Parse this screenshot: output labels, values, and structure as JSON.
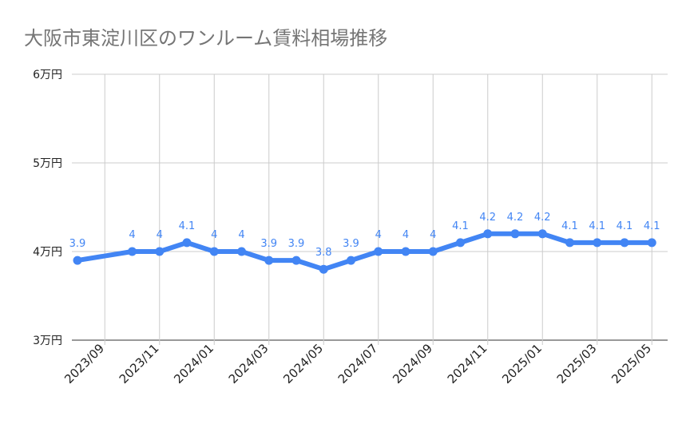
{
  "chart_data": {
    "type": "line",
    "title": "大阪市東淀川区のワンルーム賃料相場推移",
    "xlabel": "",
    "ylabel": "",
    "y_ticks": [
      {
        "value": 3,
        "label": "3万円"
      },
      {
        "value": 4,
        "label": "4万円"
      },
      {
        "value": 5,
        "label": "5万円"
      },
      {
        "value": 6,
        "label": "6万円"
      }
    ],
    "ylim": [
      3,
      6
    ],
    "grid": true,
    "legend": "none",
    "line_color": "#4285f4",
    "x_tick_labels": [
      "2023/09",
      "2023/11",
      "2024/01",
      "2024/03",
      "2024/05",
      "2024/07",
      "2024/09",
      "2024/11",
      "2025/01",
      "2025/03",
      "2025/05"
    ],
    "points": [
      {
        "x": "2023/08",
        "value": 3.9,
        "label": "3.9"
      },
      {
        "x": "2023/10",
        "value": 4.0,
        "label": "4"
      },
      {
        "x": "2023/11",
        "value": 4.0,
        "label": "4"
      },
      {
        "x": "2023/12",
        "value": 4.1,
        "label": "4.1"
      },
      {
        "x": "2024/01",
        "value": 4.0,
        "label": "4"
      },
      {
        "x": "2024/02",
        "value": 4.0,
        "label": "4"
      },
      {
        "x": "2024/03",
        "value": 3.9,
        "label": "3.9"
      },
      {
        "x": "2024/04",
        "value": 3.9,
        "label": "3.9"
      },
      {
        "x": "2024/05",
        "value": 3.8,
        "label": "3.8"
      },
      {
        "x": "2024/06",
        "value": 3.9,
        "label": "3.9"
      },
      {
        "x": "2024/07",
        "value": 4.0,
        "label": "4"
      },
      {
        "x": "2024/08",
        "value": 4.0,
        "label": "4"
      },
      {
        "x": "2024/09",
        "value": 4.0,
        "label": "4"
      },
      {
        "x": "2024/10",
        "value": 4.1,
        "label": "4.1"
      },
      {
        "x": "2024/11",
        "value": 4.2,
        "label": "4.2"
      },
      {
        "x": "2024/12",
        "value": 4.2,
        "label": "4.2"
      },
      {
        "x": "2025/01",
        "value": 4.2,
        "label": "4.2"
      },
      {
        "x": "2025/02",
        "value": 4.1,
        "label": "4.1"
      },
      {
        "x": "2025/03",
        "value": 4.1,
        "label": "4.1"
      },
      {
        "x": "2025/04",
        "value": 4.1,
        "label": "4.1"
      },
      {
        "x": "2025/05",
        "value": 4.1,
        "label": "4.1"
      }
    ]
  }
}
